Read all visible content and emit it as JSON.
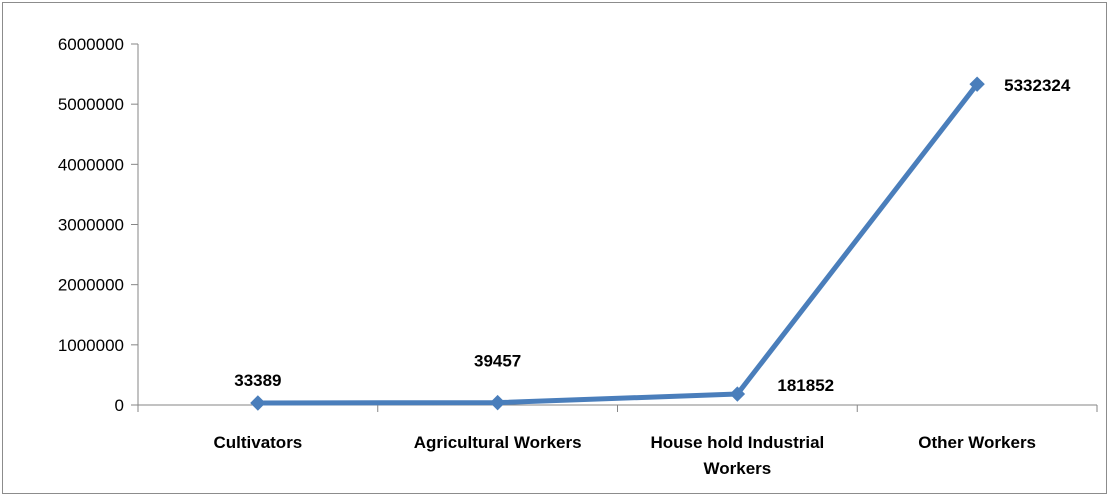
{
  "chart_data": {
    "type": "line",
    "title": "",
    "xlabel": "",
    "ylabel": "",
    "categories": [
      "Cultivators",
      "Agricultural Workers",
      "House hold Industrial Workers",
      "Other Workers"
    ],
    "category_lines": [
      [
        "Cultivators"
      ],
      [
        "Agricultural Workers"
      ],
      [
        "House hold Industrial",
        "Workers"
      ],
      [
        "Other Workers"
      ]
    ],
    "series": [
      {
        "values": [
          33389,
          39457,
          181852,
          5332324
        ],
        "color": "#4a7ebb"
      }
    ],
    "data_labels": [
      "33389",
      "39457",
      "181852",
      "5332324"
    ],
    "yticks": [
      "0",
      "1000000",
      "2000000",
      "3000000",
      "4000000",
      "5000000",
      "6000000"
    ],
    "ylim": [
      0,
      6000000
    ],
    "grid": false,
    "legend": "none",
    "marker": "diamond"
  }
}
